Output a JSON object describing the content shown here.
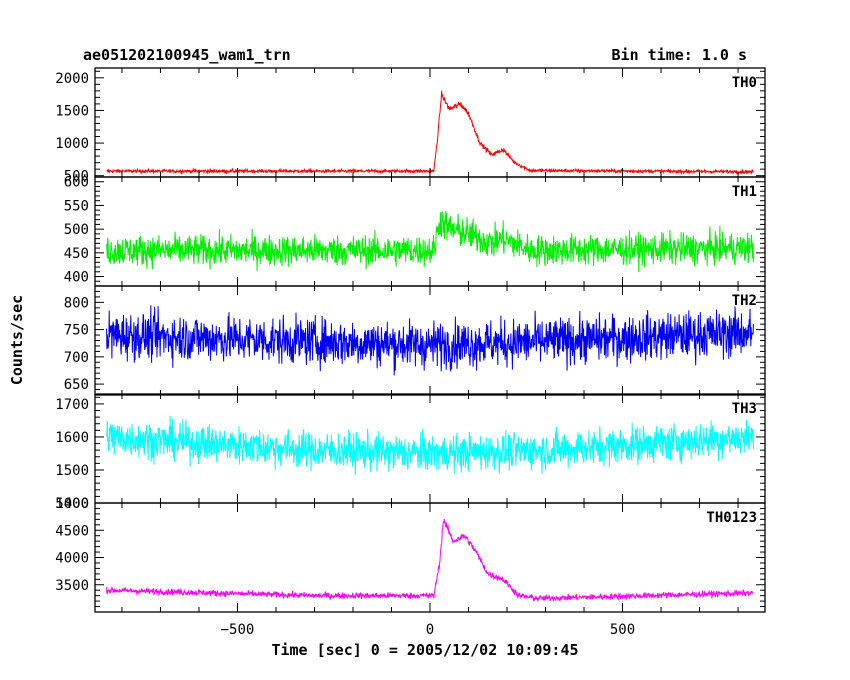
{
  "header": {
    "title": "ae051202100945_wam1_trn",
    "bin_time": "Bin time: 1.0 s"
  },
  "axes": {
    "ylabel": "Counts/sec",
    "xlabel": "Time [sec] 0 = 2005/12/02 10:09:45",
    "x_tick_labels": [
      "−500",
      "0",
      "500"
    ]
  },
  "chart_data": {
    "type": "line",
    "xlabel": "Time [sec] 0 = 2005/12/02 10:09:45",
    "ylabel": "Counts/sec",
    "xlim": [
      -870,
      870
    ],
    "x_ticks": [
      -500,
      0,
      500
    ],
    "shared_x_range": [
      -840,
      840
    ],
    "panels": [
      {
        "name": "TH0",
        "color": "#ff0000",
        "ylim": [
          480,
          2150
        ],
        "yticks": [
          500,
          1000,
          1500,
          2000
        ],
        "baseline": 570,
        "noise": 25,
        "profile": [
          [
            -840,
            570
          ],
          [
            10,
            570
          ],
          [
            20,
            1100
          ],
          [
            30,
            1750
          ],
          [
            50,
            1520
          ],
          [
            80,
            1600
          ],
          [
            100,
            1450
          ],
          [
            130,
            1000
          ],
          [
            160,
            820
          ],
          [
            190,
            900
          ],
          [
            220,
            700
          ],
          [
            260,
            580
          ],
          [
            840,
            560
          ]
        ]
      },
      {
        "name": "TH1",
        "color": "#00ee00",
        "ylim": [
          380,
          610
        ],
        "yticks": [
          400,
          450,
          500,
          550,
          600
        ],
        "baseline": 455,
        "noise": 32,
        "profile": [
          [
            -840,
            455
          ],
          [
            10,
            455
          ],
          [
            25,
            520
          ],
          [
            50,
            500
          ],
          [
            100,
            490
          ],
          [
            160,
            470
          ],
          [
            190,
            480
          ],
          [
            260,
            455
          ],
          [
            840,
            460
          ]
        ]
      },
      {
        "name": "TH2",
        "color": "#0000ee",
        "ylim": [
          630,
          830
        ],
        "yticks": [
          650,
          700,
          750,
          800
        ],
        "baseline": 728,
        "noise": 42,
        "profile": [
          [
            -840,
            740
          ],
          [
            -300,
            728
          ],
          [
            0,
            722
          ],
          [
            300,
            728
          ],
          [
            840,
            745
          ]
        ]
      },
      {
        "name": "TH3",
        "color": "#00ffff",
        "ylim": [
          1400,
          1730
        ],
        "yticks": [
          1400,
          1500,
          1600,
          1700
        ],
        "baseline": 1560,
        "noise": 55,
        "profile": [
          [
            -840,
            1600
          ],
          [
            -300,
            1560
          ],
          [
            0,
            1550
          ],
          [
            300,
            1560
          ],
          [
            840,
            1600
          ]
        ]
      },
      {
        "name": "TH0123",
        "color": "#ff00ff",
        "ylim": [
          3000,
          5000
        ],
        "yticks": [
          3500,
          4000,
          4500,
          5000
        ],
        "baseline": 3350,
        "noise": 55,
        "profile": [
          [
            -840,
            3400
          ],
          [
            -300,
            3300
          ],
          [
            10,
            3300
          ],
          [
            25,
            3900
          ],
          [
            35,
            4700
          ],
          [
            60,
            4300
          ],
          [
            90,
            4400
          ],
          [
            120,
            4100
          ],
          [
            150,
            3700
          ],
          [
            190,
            3600
          ],
          [
            230,
            3300
          ],
          [
            280,
            3250
          ],
          [
            840,
            3350
          ]
        ]
      }
    ]
  }
}
